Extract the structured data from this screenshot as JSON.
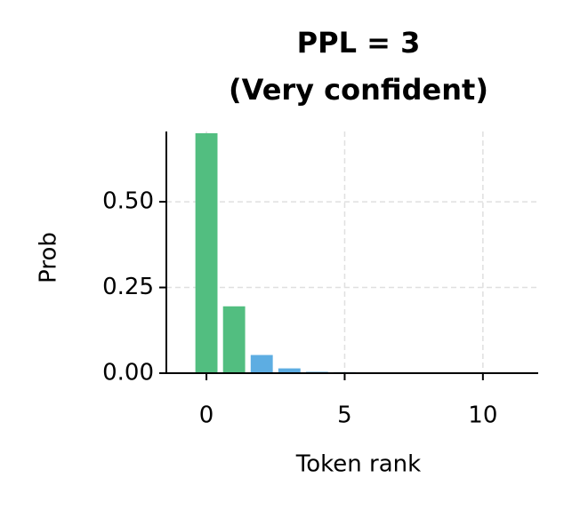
{
  "chart_data": {
    "type": "bar",
    "title": [
      "PPL = 3",
      "(Very confident)"
    ],
    "x_label": "Token rank",
    "y_label": "Prob",
    "x": [
      0,
      1,
      2,
      3,
      4,
      5,
      6,
      7,
      8,
      9,
      10,
      11
    ],
    "values": [
      0.7,
      0.195,
      0.053,
      0.014,
      0.004,
      0.003,
      0.002,
      0.002,
      0.001,
      0.001,
      0.001,
      0.001
    ],
    "colors": [
      "#52be80",
      "#52be80",
      "#5dade2",
      "#5dade2",
      "#5dade2",
      "#5dade2",
      "#5dade2",
      "#5dade2",
      "#5dade2",
      "#5dade2",
      "#5dade2",
      "#5dade2"
    ],
    "xlim": [
      -1.45,
      12
    ],
    "xticks": [
      0,
      5,
      10
    ],
    "ylim": [
      0,
      0.705
    ],
    "yticks": [
      {
        "value": 0,
        "label": "0.00"
      },
      {
        "value": 0.25,
        "label": "0.25"
      },
      {
        "value": 0.5,
        "label": "0.50"
      }
    ],
    "grid": true
  }
}
